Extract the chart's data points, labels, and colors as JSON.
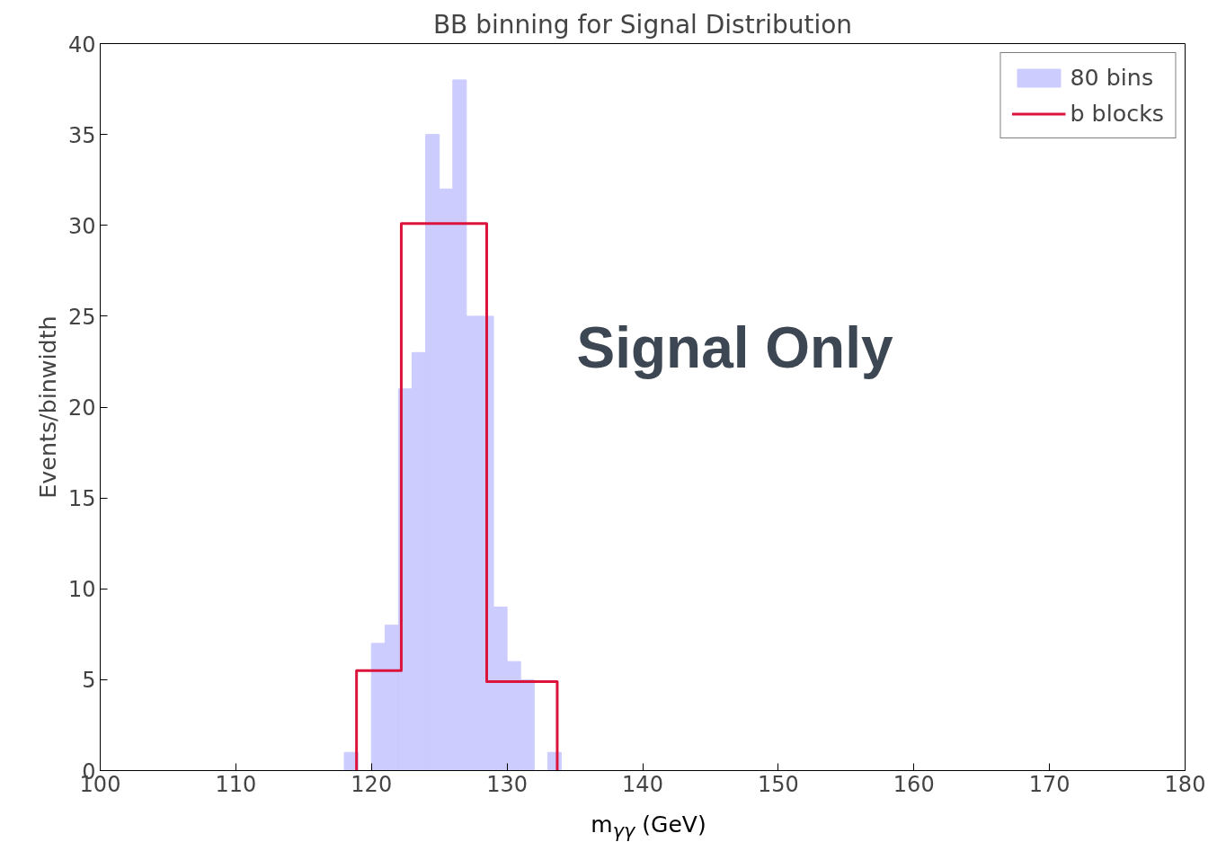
{
  "chart_data": {
    "type": "histogram",
    "title": "BB binning for Signal Distribution",
    "xlabel": "m$_{γγ}$ (GeV)",
    "ylabel": "Events/binwidth",
    "bins": [
      100,
      101,
      102,
      103,
      104,
      105,
      106,
      107,
      108,
      109,
      110,
      111,
      112,
      113,
      114,
      115,
      116,
      117,
      118,
      119,
      120,
      121,
      122,
      123,
      124,
      125,
      126,
      127,
      128,
      129,
      130,
      131,
      132,
      133,
      134,
      135,
      136,
      137,
      138,
      139,
      140,
      141,
      142,
      143,
      144,
      145,
      146,
      147,
      148,
      149,
      150,
      151,
      152,
      153,
      154,
      155,
      156,
      157,
      158,
      159,
      160,
      161,
      162,
      163,
      164,
      165,
      166,
      167,
      168,
      169,
      170,
      171,
      172,
      173,
      174,
      175,
      176,
      177,
      178,
      179,
      180
    ],
    "series": [
      {
        "name": "80 bins",
        "color": "#ccccff",
        "values": [
          0,
          0,
          0,
          0,
          0,
          0,
          0,
          0,
          0,
          0,
          0,
          0,
          0,
          0,
          0,
          0,
          0,
          0,
          1,
          0,
          7,
          8,
          21,
          23,
          35,
          32,
          38,
          25,
          25,
          9,
          6,
          5,
          0,
          1,
          0,
          0,
          0,
          0,
          0,
          0,
          0,
          0,
          0,
          0,
          0,
          0,
          0,
          0,
          0,
          0,
          0,
          0,
          0,
          0,
          0,
          0,
          0,
          0,
          0,
          0,
          0,
          0,
          0,
          0,
          0,
          0,
          0,
          0,
          0,
          0,
          0,
          0,
          0,
          0,
          0,
          0,
          0,
          0,
          0,
          0
        ]
      },
      {
        "name": "b blocks",
        "type": "step",
        "color": "#dc143c",
        "x": [
          118.9,
          118.9,
          122.2,
          128.5,
          133.7
        ],
        "values": [
          0,
          5.5,
          30.1,
          4.9,
          0
        ]
      }
    ],
    "xlim": [
      100,
      180
    ],
    "ylim": [
      0,
      40
    ],
    "xticks": [
      100,
      110,
      120,
      130,
      140,
      150,
      160,
      170,
      180
    ],
    "yticks": [
      0,
      5,
      10,
      15,
      20,
      25,
      30,
      35,
      40
    ],
    "grid": false,
    "legend": "top right",
    "annotations": [
      {
        "text": "Signal Only"
      }
    ]
  }
}
